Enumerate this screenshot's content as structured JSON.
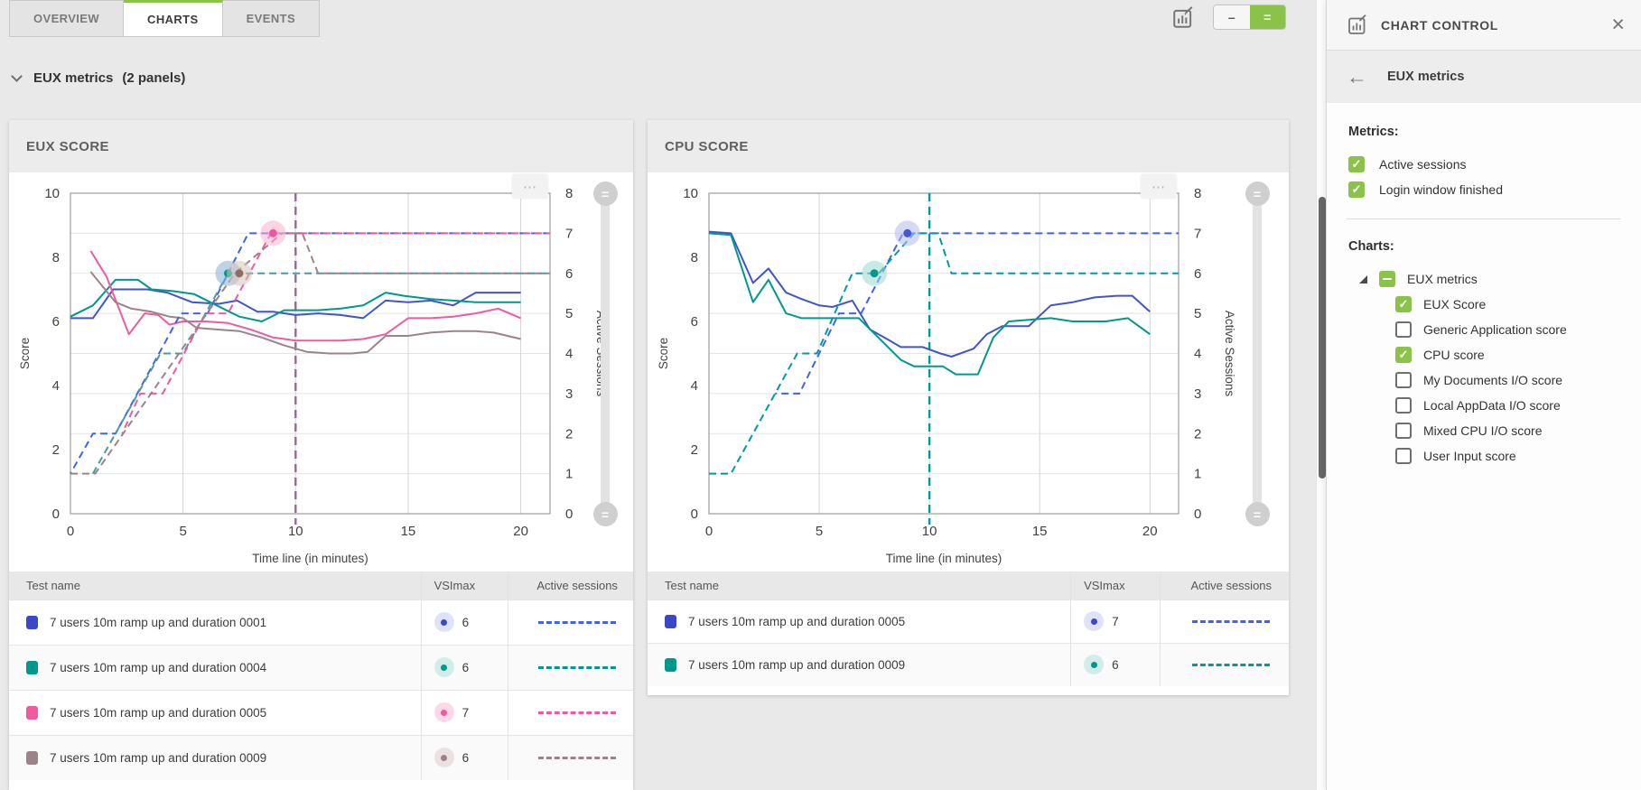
{
  "tabs": [
    {
      "label": "OVERVIEW",
      "active": false
    },
    {
      "label": "CHARTS",
      "active": true
    },
    {
      "label": "EVENTS",
      "active": false
    }
  ],
  "toolbar": {
    "chart_button_icon": "chart-edit-icon",
    "size_toggle": {
      "collapse_label": "–",
      "expand_label": "="
    }
  },
  "section": {
    "title": "EUX metrics",
    "count": "(2 panels)"
  },
  "icons": {
    "chart_menu": "⋯",
    "slider_handle": "=",
    "close": "×",
    "back": "←",
    "checkmark": "✓"
  },
  "accent_color": "#8bc34a",
  "chart_data": [
    {
      "type": "line",
      "title": "EUX SCORE",
      "xlabel": "Time line (in minutes)",
      "ylabel_left": "Score",
      "ylabel_right": "Active Sessions",
      "x_ticks": [
        0,
        5,
        10,
        15,
        20
      ],
      "y_left": {
        "min": 0,
        "max": 10,
        "ticks": [
          0,
          2,
          4,
          6,
          8,
          10
        ]
      },
      "y_right": {
        "min": 0,
        "max": 8,
        "ticks": [
          0,
          1,
          2,
          3,
          4,
          5,
          6,
          7,
          8
        ]
      },
      "cursor": {
        "x": 10,
        "color": "#936d8c"
      },
      "series": [
        {
          "name": "7 users 10m ramp up and duration 0001",
          "metric": "EUX Score",
          "style": "solid",
          "axis": "left",
          "color": "#4254cd",
          "points": [
            [
              0,
              6.1
            ],
            [
              1,
              6.1
            ],
            [
              1.9,
              7.0
            ],
            [
              3.4,
              7.0
            ],
            [
              4.3,
              6.9
            ],
            [
              5.4,
              6.6
            ],
            [
              6.6,
              6.55
            ],
            [
              7.4,
              6.65
            ],
            [
              8.3,
              6.3
            ],
            [
              9,
              6.3
            ],
            [
              10,
              6.2
            ],
            [
              11,
              6.25
            ],
            [
              12,
              6.2
            ],
            [
              13,
              6.1
            ],
            [
              14,
              6.65
            ],
            [
              15,
              6.6
            ],
            [
              16,
              6.65
            ],
            [
              17,
              6.5
            ],
            [
              18,
              6.9
            ],
            [
              19,
              6.9
            ],
            [
              20,
              6.9
            ]
          ]
        },
        {
          "name": "7 users 10m ramp up and duration 0004",
          "metric": "EUX Score",
          "style": "solid",
          "axis": "left",
          "color": "#00988c",
          "points": [
            [
              0,
              6.15
            ],
            [
              1,
              6.5
            ],
            [
              2,
              7.3
            ],
            [
              3,
              7.3
            ],
            [
              3.6,
              7.0
            ],
            [
              4.5,
              6.95
            ],
            [
              5.5,
              6.85
            ],
            [
              6.5,
              6.5
            ],
            [
              7.5,
              6.15
            ],
            [
              8.5,
              6.0
            ],
            [
              9.5,
              6.35
            ],
            [
              11,
              6.35
            ],
            [
              12,
              6.4
            ],
            [
              13,
              6.5
            ],
            [
              14,
              6.9
            ],
            [
              14.8,
              6.8
            ],
            [
              16,
              6.7
            ],
            [
              17,
              6.65
            ],
            [
              18,
              6.6
            ],
            [
              19,
              6.6
            ],
            [
              20,
              6.6
            ]
          ]
        },
        {
          "name": "7 users 10m ramp up and duration 0005",
          "metric": "EUX Score",
          "style": "solid",
          "axis": "left",
          "color": "#f05a9e",
          "points": [
            [
              0.9,
              8.2
            ],
            [
              1.6,
              7.4
            ],
            [
              2.6,
              5.6
            ],
            [
              3.3,
              6.25
            ],
            [
              3.9,
              6.2
            ],
            [
              4.4,
              5.9
            ],
            [
              5,
              6.0
            ],
            [
              6,
              6.0
            ],
            [
              7,
              5.95
            ],
            [
              8,
              5.75
            ],
            [
              9,
              5.5
            ],
            [
              10,
              5.4
            ],
            [
              12,
              5.4
            ],
            [
              13,
              5.45
            ],
            [
              14,
              5.6
            ],
            [
              15,
              6.1
            ],
            [
              16,
              6.1
            ],
            [
              17,
              6.15
            ],
            [
              18,
              6.25
            ],
            [
              19,
              6.4
            ],
            [
              20,
              6.1
            ]
          ]
        },
        {
          "name": "7 users 10m ramp up and duration 0009",
          "metric": "EUX Score",
          "style": "solid",
          "axis": "left",
          "color": "#9c8289",
          "points": [
            [
              0.9,
              7.55
            ],
            [
              2,
              6.6
            ],
            [
              2.7,
              6.4
            ],
            [
              3.6,
              6.3
            ],
            [
              4.4,
              6.15
            ],
            [
              5,
              6.1
            ],
            [
              5.6,
              5.8
            ],
            [
              6.5,
              5.75
            ],
            [
              7.5,
              5.7
            ],
            [
              8.5,
              5.5
            ],
            [
              9.5,
              5.25
            ],
            [
              10.5,
              5.05
            ],
            [
              11.5,
              5.0
            ],
            [
              12.5,
              5.0
            ],
            [
              13.2,
              5.05
            ],
            [
              14,
              5.55
            ],
            [
              15,
              5.55
            ],
            [
              16,
              5.65
            ],
            [
              17,
              5.7
            ],
            [
              18,
              5.7
            ],
            [
              18.8,
              5.65
            ],
            [
              20,
              5.45
            ]
          ]
        },
        {
          "name": "7 users 10m ramp up and duration 0001",
          "metric": "Active sessions",
          "style": "dashed",
          "axis": "right",
          "color": "#3e63ef",
          "points": [
            [
              0,
              1
            ],
            [
              1,
              2
            ],
            [
              2,
              2
            ],
            [
              4.9,
              5
            ],
            [
              6.1,
              5
            ],
            [
              7.9,
              7
            ],
            [
              21.3,
              7
            ]
          ]
        },
        {
          "name": "7 users 10m ramp up and duration 0004",
          "metric": "Active sessions",
          "style": "dashed",
          "axis": "right",
          "color": "#4a9aa0",
          "points": [
            [
              1,
              1
            ],
            [
              4,
              4
            ],
            [
              5,
              4
            ],
            [
              7,
              6
            ],
            [
              21.3,
              6
            ]
          ]
        },
        {
          "name": "7 users 10m ramp up and duration 0005",
          "metric": "Active sessions",
          "style": "dashed",
          "axis": "right",
          "color": "#f05a9e",
          "points": [
            [
              2.3,
              2
            ],
            [
              3.1,
              3
            ],
            [
              4.1,
              3
            ],
            [
              6,
              5
            ],
            [
              7,
              5
            ],
            [
              8.9,
              7
            ],
            [
              21.3,
              7
            ]
          ]
        },
        {
          "name": "7 users 10m ramp up and duration 0009",
          "metric": "Active sessions",
          "style": "dashed",
          "axis": "right",
          "color": "#9c8289",
          "points": [
            [
              0,
              1
            ],
            [
              1.1,
              1
            ],
            [
              7.3,
              6
            ],
            [
              9.4,
              7
            ],
            [
              10.3,
              7
            ],
            [
              11,
              6
            ],
            [
              21.3,
              6
            ]
          ]
        }
      ],
      "markers": [
        {
          "x": 7,
          "y": 6,
          "axis": "right",
          "dot": "#00988c",
          "halo": "#86aed6"
        },
        {
          "x": 7.5,
          "y": 6,
          "axis": "right",
          "dot": "#8d6e63",
          "halo": "#d8c5b8"
        },
        {
          "x": 9,
          "y": 7,
          "axis": "right",
          "dot": "#f0569f",
          "halo": "#f9b1ce"
        }
      ],
      "table": {
        "headers": [
          "Test name",
          "VSImax",
          "Active sessions"
        ],
        "rows": [
          {
            "name": "7 users 10m ramp up and duration 0001",
            "vsimax": 6,
            "color": "#3b46c9",
            "badge_bg": "#dfe2f9",
            "dash": "#3e63ef"
          },
          {
            "name": "7 users 10m ramp up and duration 0004",
            "vsimax": 6,
            "color": "#00988c",
            "badge_bg": "#d2ecea",
            "dash": "#00988c"
          },
          {
            "name": "7 users 10m ramp up and duration 0005",
            "vsimax": 7,
            "color": "#f05a9e",
            "badge_bg": "#fcd9e9",
            "dash": "#f05a9e"
          },
          {
            "name": "7 users 10m ramp up and duration 0009",
            "vsimax": 6,
            "color": "#9c8289",
            "badge_bg": "#ece1e1",
            "dash": "#9c8289"
          }
        ]
      }
    },
    {
      "type": "line",
      "title": "CPU SCORE",
      "xlabel": "Time line (in minutes)",
      "ylabel_left": "Score",
      "ylabel_right": "Active Sessions",
      "x_ticks": [
        0,
        5,
        10,
        15,
        20
      ],
      "y_left": {
        "min": 0,
        "max": 10,
        "ticks": [
          0,
          2,
          4,
          6,
          8,
          10
        ]
      },
      "y_right": {
        "min": 0,
        "max": 8,
        "ticks": [
          0,
          1,
          2,
          3,
          4,
          5,
          6,
          7,
          8
        ]
      },
      "cursor": {
        "x": 10,
        "color": "#0097a7"
      },
      "series": [
        {
          "name": "7 users 10m ramp up and duration 0005",
          "metric": "CPU score",
          "style": "solid",
          "axis": "left",
          "color": "#4254cd",
          "points": [
            [
              0,
              8.8
            ],
            [
              1,
              8.75
            ],
            [
              2,
              7.2
            ],
            [
              2.7,
              7.65
            ],
            [
              3.5,
              6.9
            ],
            [
              4.2,
              6.7
            ],
            [
              5,
              6.5
            ],
            [
              5.6,
              6.45
            ],
            [
              6.5,
              6.65
            ],
            [
              7.3,
              5.75
            ],
            [
              8.2,
              5.4
            ],
            [
              8.7,
              5.2
            ],
            [
              9.7,
              5.2
            ],
            [
              10.5,
              5.0
            ],
            [
              11,
              4.9
            ],
            [
              12,
              5.15
            ],
            [
              12.6,
              5.6
            ],
            [
              13.3,
              5.85
            ],
            [
              14.5,
              5.85
            ],
            [
              15.5,
              6.5
            ],
            [
              16.5,
              6.6
            ],
            [
              17.5,
              6.75
            ],
            [
              18.5,
              6.8
            ],
            [
              19.2,
              6.8
            ],
            [
              20,
              6.3
            ]
          ]
        },
        {
          "name": "7 users 10m ramp up and duration 0009",
          "metric": "CPU score",
          "style": "solid",
          "axis": "left",
          "color": "#00988c",
          "points": [
            [
              0,
              8.75
            ],
            [
              1,
              8.7
            ],
            [
              2,
              6.6
            ],
            [
              2.7,
              7.3
            ],
            [
              3.5,
              6.25
            ],
            [
              4.2,
              6.1
            ],
            [
              6.8,
              6.1
            ],
            [
              8.7,
              4.8
            ],
            [
              9.3,
              4.6
            ],
            [
              10.6,
              4.6
            ],
            [
              11.2,
              4.35
            ],
            [
              12.2,
              4.35
            ],
            [
              12.9,
              5.5
            ],
            [
              13.6,
              6.0
            ],
            [
              14.5,
              6.05
            ],
            [
              15.5,
              6.1
            ],
            [
              16.5,
              6.0
            ],
            [
              18,
              6.0
            ],
            [
              19,
              6.1
            ],
            [
              20,
              5.6
            ]
          ]
        },
        {
          "name": "7 users 10m ramp up and duration 0005",
          "metric": "Active sessions",
          "style": "dashed",
          "axis": "right",
          "color": "#3e63ef",
          "points": [
            [
              3,
              3
            ],
            [
              4.1,
              3
            ],
            [
              5.9,
              5
            ],
            [
              6.9,
              5
            ],
            [
              8.8,
              7
            ],
            [
              21.3,
              7
            ]
          ]
        },
        {
          "name": "7 users 10m ramp up and duration 0009",
          "metric": "Active sessions",
          "style": "dashed",
          "axis": "right",
          "color": "#0099a5",
          "points": [
            [
              0,
              1
            ],
            [
              1,
              1
            ],
            [
              4,
              4
            ],
            [
              4.9,
              4
            ],
            [
              6.5,
              6
            ],
            [
              7.7,
              6
            ],
            [
              9.3,
              7
            ],
            [
              10.4,
              7
            ],
            [
              11,
              6
            ],
            [
              21.3,
              6
            ]
          ]
        }
      ],
      "markers": [
        {
          "x": 7.5,
          "y": 6,
          "axis": "right",
          "dot": "#00988c",
          "halo": "#9bd9d2"
        },
        {
          "x": 9,
          "y": 7,
          "axis": "right",
          "dot": "#4556cf",
          "halo": "#b3baee"
        }
      ],
      "table": {
        "headers": [
          "Test name",
          "VSImax",
          "Active sessions"
        ],
        "rows": [
          {
            "name": "7 users 10m ramp up and duration 0005",
            "vsimax": 7,
            "color": "#3b46c9",
            "badge_bg": "#dfe2f9",
            "dash": "#3e63ef"
          },
          {
            "name": "7 users 10m ramp up and duration 0009",
            "vsimax": 6,
            "color": "#00988c",
            "badge_bg": "#d2ecea",
            "dash": "#0099a5"
          }
        ]
      }
    }
  ],
  "sidebar": {
    "title": "CHART CONTROL",
    "breadcrumb": "EUX metrics",
    "metrics_label": "Metrics:",
    "metrics": [
      {
        "label": "Active sessions",
        "checked": true
      },
      {
        "label": "Login window finished",
        "checked": true
      }
    ],
    "charts_label": "Charts:",
    "tree": {
      "label": "EUX metrics",
      "state": "indeterminate",
      "children": [
        {
          "label": "EUX Score",
          "checked": true
        },
        {
          "label": "Generic Application score",
          "checked": false
        },
        {
          "label": "CPU score",
          "checked": true
        },
        {
          "label": "My Documents I/O score",
          "checked": false
        },
        {
          "label": "Local AppData I/O score",
          "checked": false
        },
        {
          "label": "Mixed CPU I/O score",
          "checked": false
        },
        {
          "label": "User Input score",
          "checked": false
        }
      ]
    }
  }
}
